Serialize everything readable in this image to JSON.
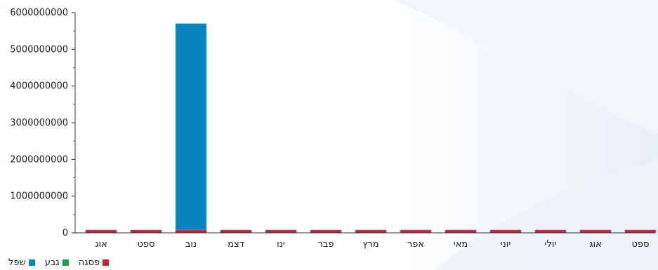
{
  "chart_data": {
    "type": "bar",
    "categories": [
      "אוג",
      "ספט",
      "נוב",
      "דצמ",
      "ינו",
      "פבר",
      "מרץ",
      "אפר",
      "מאי",
      "יוני",
      "יולי",
      "אוג",
      "ספט"
    ],
    "series": [
      {
        "name": "שפל",
        "values": [
          0,
          0,
          5700000000,
          0,
          0,
          0,
          0,
          0,
          0,
          0,
          0,
          0,
          0
        ]
      },
      {
        "name": "גבע",
        "values": [
          0,
          0,
          0,
          0,
          0,
          0,
          0,
          0,
          0,
          0,
          0,
          0,
          0
        ]
      },
      {
        "name": "פסגה",
        "values": [
          0,
          0,
          0,
          0,
          0,
          0,
          0,
          0,
          0,
          0,
          0,
          0,
          0
        ]
      }
    ],
    "y_ticks": [
      0,
      1000000000,
      2000000000,
      3000000000,
      4000000000,
      5000000000,
      6000000000
    ],
    "y_tick_labels": [
      "0",
      "1000000000",
      "2000000000",
      "3000000000",
      "4000000000",
      "5000000000",
      "6000000000"
    ],
    "ylim": [
      0,
      6000000000
    ],
    "title": "",
    "xlabel": "",
    "ylabel": "",
    "grid": false,
    "legend_position": "bottom-left",
    "colors": {
      "series": [
        "#0a84bf",
        "#1aa04a",
        "#cc1f3c"
      ],
      "axis": "#333333",
      "minor_tick": "#e0302a"
    }
  }
}
